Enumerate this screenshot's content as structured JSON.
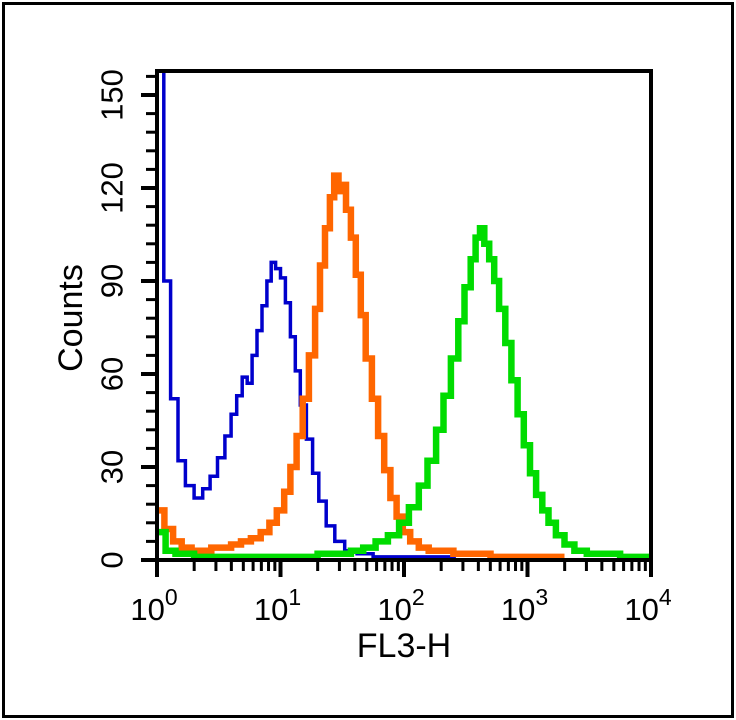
{
  "figure": {
    "kind": "flow-cytometry-histogram-overlay",
    "background_color": "#FFFFFF",
    "border_color": "#000000",
    "title": "",
    "legend": "none"
  },
  "chart_data": {
    "type": "line",
    "subtype": "step-histogram (flow cytometry overlay, 3 samples)",
    "title": "",
    "xlabel": "FL3-H",
    "ylabel": "Counts",
    "x_scale": "log10",
    "x_range": [
      1,
      10000
    ],
    "x_ticks": [
      {
        "base": "10",
        "exp": "0"
      },
      {
        "base": "10",
        "exp": "1"
      },
      {
        "base": "10",
        "exp": "2"
      },
      {
        "base": "10",
        "exp": "3"
      },
      {
        "base": "10",
        "exp": "4"
      }
    ],
    "x_minor_ticks": "log decades, 2-9 per decade",
    "ylim": [
      0,
      150
    ],
    "y_major_ticks": [
      0,
      30,
      60,
      90,
      120,
      150
    ],
    "y_minor_step": 6,
    "grid": false,
    "legend_position": "none",
    "axis_color": "#000000",
    "series": [
      {
        "name": "blue",
        "color": "#0000CC",
        "stroke_width": 3.5,
        "peak": {
          "x_approx": 8,
          "count": 96
        },
        "note": "first bin at x=1 exceeds axis max (clipped at plot top)",
        "end_log10x": 2.42,
        "points_log10x_count": [
          [
            0,
            170
          ],
          [
            0.055,
            90
          ],
          [
            0.11,
            52
          ],
          [
            0.17,
            32
          ],
          [
            0.23,
            24
          ],
          [
            0.3,
            20
          ],
          [
            0.37,
            23
          ],
          [
            0.43,
            27
          ],
          [
            0.49,
            33
          ],
          [
            0.55,
            40
          ],
          [
            0.6,
            47
          ],
          [
            0.645,
            53
          ],
          [
            0.69,
            59
          ],
          [
            0.73,
            57
          ],
          [
            0.77,
            66
          ],
          [
            0.81,
            74
          ],
          [
            0.85,
            82
          ],
          [
            0.89,
            90
          ],
          [
            0.925,
            96
          ],
          [
            0.96,
            94
          ],
          [
            1.0,
            91
          ],
          [
            1.04,
            83
          ],
          [
            1.08,
            72
          ],
          [
            1.12,
            61
          ],
          [
            1.16,
            50
          ],
          [
            1.21,
            39
          ],
          [
            1.26,
            28
          ],
          [
            1.31,
            19
          ],
          [
            1.37,
            11
          ],
          [
            1.44,
            6
          ],
          [
            1.52,
            3
          ],
          [
            1.62,
            2
          ],
          [
            1.75,
            1
          ],
          [
            2.0,
            1
          ],
          [
            2.2,
            1
          ]
        ]
      },
      {
        "name": "orange",
        "color": "#FF6600",
        "stroke_width": 6.5,
        "peak": {
          "x_approx": 27,
          "count": 124
        },
        "end_log10x": 3.3,
        "points_log10x_count": [
          [
            0,
            16
          ],
          [
            0.06,
            10
          ],
          [
            0.13,
            6
          ],
          [
            0.2,
            4
          ],
          [
            0.28,
            3
          ],
          [
            0.36,
            3
          ],
          [
            0.44,
            4
          ],
          [
            0.52,
            4
          ],
          [
            0.6,
            5
          ],
          [
            0.68,
            6
          ],
          [
            0.76,
            7
          ],
          [
            0.84,
            9
          ],
          [
            0.91,
            12
          ],
          [
            0.97,
            16
          ],
          [
            1.03,
            22
          ],
          [
            1.08,
            30
          ],
          [
            1.13,
            40
          ],
          [
            1.18,
            52
          ],
          [
            1.23,
            66
          ],
          [
            1.28,
            81
          ],
          [
            1.32,
            95
          ],
          [
            1.36,
            107
          ],
          [
            1.4,
            117
          ],
          [
            1.435,
            124
          ],
          [
            1.47,
            119
          ],
          [
            1.5,
            121
          ],
          [
            1.53,
            113
          ],
          [
            1.57,
            104
          ],
          [
            1.61,
            92
          ],
          [
            1.65,
            79
          ],
          [
            1.69,
            65
          ],
          [
            1.74,
            52
          ],
          [
            1.79,
            40
          ],
          [
            1.84,
            29
          ],
          [
            1.89,
            20
          ],
          [
            1.94,
            14
          ],
          [
            1.99,
            9
          ],
          [
            2.05,
            6
          ],
          [
            2.12,
            4
          ],
          [
            2.2,
            3
          ],
          [
            2.3,
            3
          ],
          [
            2.4,
            2
          ],
          [
            2.52,
            2
          ],
          [
            2.7,
            1
          ],
          [
            2.9,
            1
          ],
          [
            3.1,
            1
          ]
        ]
      },
      {
        "name": "green",
        "color": "#00DC00",
        "stroke_width": 6.5,
        "peak": {
          "x_approx": 400,
          "count": 107
        },
        "end_log10x": 4.0,
        "points_log10x_count": [
          [
            0,
            9
          ],
          [
            0.07,
            3
          ],
          [
            0.15,
            2
          ],
          [
            0.3,
            1
          ],
          [
            0.55,
            1
          ],
          [
            0.8,
            1
          ],
          [
            1.05,
            1
          ],
          [
            1.3,
            2
          ],
          [
            1.45,
            2
          ],
          [
            1.57,
            3
          ],
          [
            1.67,
            4
          ],
          [
            1.77,
            6
          ],
          [
            1.87,
            8
          ],
          [
            1.96,
            12
          ],
          [
            2.04,
            17
          ],
          [
            2.12,
            24
          ],
          [
            2.19,
            32
          ],
          [
            2.26,
            42
          ],
          [
            2.32,
            53
          ],
          [
            2.38,
            65
          ],
          [
            2.44,
            77
          ],
          [
            2.49,
            88
          ],
          [
            2.54,
            97
          ],
          [
            2.58,
            104
          ],
          [
            2.615,
            107
          ],
          [
            2.65,
            102
          ],
          [
            2.69,
            97
          ],
          [
            2.73,
            90
          ],
          [
            2.77,
            81
          ],
          [
            2.82,
            70
          ],
          [
            2.87,
            58
          ],
          [
            2.92,
            47
          ],
          [
            2.97,
            37
          ],
          [
            3.02,
            28
          ],
          [
            3.07,
            21
          ],
          [
            3.12,
            16
          ],
          [
            3.17,
            12
          ],
          [
            3.23,
            8
          ],
          [
            3.3,
            5
          ],
          [
            3.38,
            3
          ],
          [
            3.48,
            2
          ],
          [
            3.6,
            2
          ],
          [
            3.75,
            1
          ]
        ]
      }
    ]
  }
}
